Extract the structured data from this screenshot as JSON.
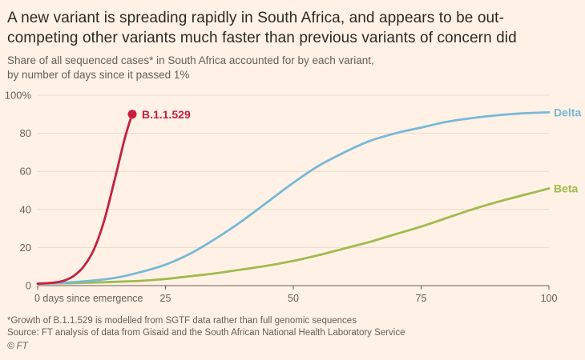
{
  "colors": {
    "background": "#fff1e5",
    "grid": "#e9dcca",
    "axis": "#66605c",
    "tick_text": "#66605c",
    "title_text": "#2d2a26",
    "subtitle_text": "#66605c"
  },
  "chart_data": {
    "type": "line",
    "title": "A new variant is spreading rapidly in South Africa, and appears to be out-competing other variants much faster than previous variants of concern did",
    "title_lines": [
      "A new variant is spreading rapidly in South Africa, and appears to be out-",
      "competing other variants much faster than previous variants of concern did"
    ],
    "subtitle_lines": [
      "Share of all sequenced cases* in South Africa accounted for by each variant,",
      "by number of days since it passed 1%"
    ],
    "xlabel": "",
    "ylabel": "",
    "xlim": [
      0,
      100
    ],
    "ylim": [
      0,
      100
    ],
    "grid": true,
    "legend_position": "inline-labels",
    "x_ticks": [
      0,
      25,
      50,
      75,
      100
    ],
    "x_tick_labels": [
      "0 days since emergence",
      "25",
      "50",
      "75",
      "100"
    ],
    "y_ticks": [
      0,
      20,
      40,
      60,
      80,
      100
    ],
    "y_tick_labels": [
      "0",
      "20",
      "40",
      "60",
      "80",
      "100%"
    ],
    "series": [
      {
        "name": "B.1.1.529",
        "color": "#c5203f",
        "end_marker": true,
        "points": [
          [
            0,
            1
          ],
          [
            3,
            1.5
          ],
          [
            5,
            2.5
          ],
          [
            7,
            5
          ],
          [
            9,
            10
          ],
          [
            11,
            19
          ],
          [
            13,
            34
          ],
          [
            15,
            55
          ],
          [
            16,
            66
          ],
          [
            17,
            77
          ],
          [
            18,
            86
          ],
          [
            18.5,
            90
          ]
        ]
      },
      {
        "name": "Delta",
        "color": "#76b9d8",
        "end_marker": false,
        "points": [
          [
            0,
            1
          ],
          [
            5,
            1.5
          ],
          [
            10,
            2.5
          ],
          [
            15,
            4
          ],
          [
            20,
            7
          ],
          [
            25,
            11
          ],
          [
            30,
            17
          ],
          [
            35,
            25
          ],
          [
            40,
            34
          ],
          [
            45,
            44
          ],
          [
            50,
            54
          ],
          [
            55,
            63
          ],
          [
            60,
            70
          ],
          [
            65,
            76
          ],
          [
            70,
            80
          ],
          [
            75,
            83
          ],
          [
            80,
            86
          ],
          [
            85,
            88
          ],
          [
            90,
            89.5
          ],
          [
            95,
            90.5
          ],
          [
            100,
            91
          ]
        ]
      },
      {
        "name": "Beta",
        "color": "#9fbb4e",
        "end_marker": false,
        "points": [
          [
            0,
            1
          ],
          [
            10,
            1.5
          ],
          [
            20,
            2.5
          ],
          [
            25,
            3.5
          ],
          [
            30,
            5
          ],
          [
            35,
            6.5
          ],
          [
            40,
            8.5
          ],
          [
            45,
            10.5
          ],
          [
            50,
            13
          ],
          [
            55,
            16
          ],
          [
            60,
            19.5
          ],
          [
            65,
            23
          ],
          [
            70,
            27
          ],
          [
            75,
            31
          ],
          [
            80,
            35.5
          ],
          [
            85,
            40
          ],
          [
            90,
            44
          ],
          [
            95,
            47.5
          ],
          [
            100,
            51
          ]
        ]
      }
    ],
    "footnote": "*Growth of B.1.1.529 is modelled from SGTF data rather than full genomic sequences",
    "source": "Source: FT analysis of data from Gisaid and the South African National Health Laboratory Service",
    "copyright": "© FT"
  }
}
